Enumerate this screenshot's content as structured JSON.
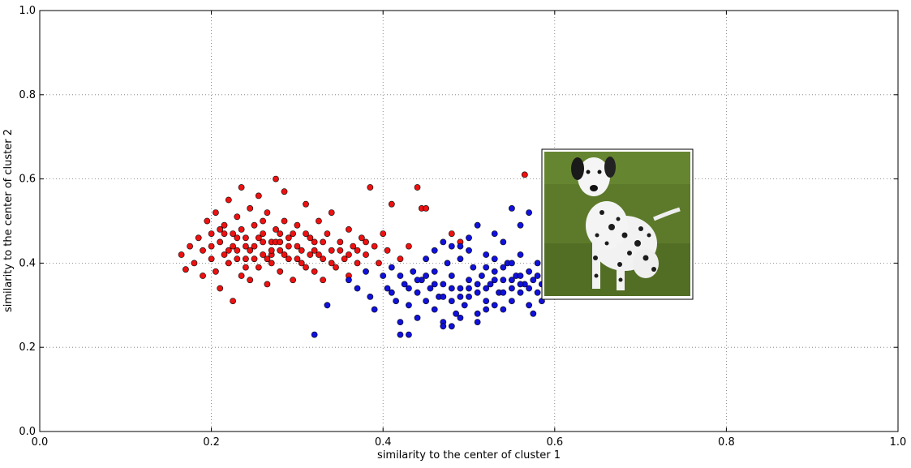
{
  "chart_data": {
    "type": "scatter",
    "xlabel": "similarity to the center of cluster 1",
    "ylabel": "similarity to the center of cluster 2",
    "xlim": [
      0.0,
      1.0
    ],
    "ylim": [
      0.0,
      1.0
    ],
    "x_ticks": [
      "0.0",
      "0.2",
      "0.4",
      "0.6",
      "0.8",
      "1.0"
    ],
    "y_ticks": [
      "0.0",
      "0.2",
      "0.4",
      "0.6",
      "0.8",
      "1.0"
    ],
    "grid": true,
    "series": [
      {
        "color": "#ee1111",
        "points": [
          [
            0.165,
            0.42
          ],
          [
            0.17,
            0.385
          ],
          [
            0.175,
            0.44
          ],
          [
            0.18,
            0.4
          ],
          [
            0.185,
            0.46
          ],
          [
            0.19,
            0.43
          ],
          [
            0.19,
            0.37
          ],
          [
            0.195,
            0.5
          ],
          [
            0.2,
            0.47
          ],
          [
            0.2,
            0.41
          ],
          [
            0.205,
            0.38
          ],
          [
            0.205,
            0.52
          ],
          [
            0.21,
            0.45
          ],
          [
            0.21,
            0.34
          ],
          [
            0.215,
            0.49
          ],
          [
            0.215,
            0.42
          ],
          [
            0.22,
            0.55
          ],
          [
            0.22,
            0.4
          ],
          [
            0.225,
            0.47
          ],
          [
            0.225,
            0.31
          ],
          [
            0.23,
            0.43
          ],
          [
            0.23,
            0.51
          ],
          [
            0.235,
            0.37
          ],
          [
            0.235,
            0.58
          ],
          [
            0.24,
            0.46
          ],
          [
            0.24,
            0.41
          ],
          [
            0.245,
            0.53
          ],
          [
            0.245,
            0.36
          ],
          [
            0.25,
            0.44
          ],
          [
            0.25,
            0.49
          ],
          [
            0.255,
            0.39
          ],
          [
            0.255,
            0.56
          ],
          [
            0.26,
            0.42
          ],
          [
            0.26,
            0.47
          ],
          [
            0.265,
            0.35
          ],
          [
            0.265,
            0.52
          ],
          [
            0.27,
            0.45
          ],
          [
            0.27,
            0.4
          ],
          [
            0.275,
            0.6
          ],
          [
            0.275,
            0.48
          ],
          [
            0.28,
            0.43
          ],
          [
            0.28,
            0.38
          ],
          [
            0.285,
            0.5
          ],
          [
            0.285,
            0.57
          ],
          [
            0.29,
            0.41
          ],
          [
            0.29,
            0.46
          ],
          [
            0.295,
            0.36
          ],
          [
            0.3,
            0.44
          ],
          [
            0.3,
            0.49
          ],
          [
            0.305,
            0.4
          ],
          [
            0.31,
            0.47
          ],
          [
            0.31,
            0.54
          ],
          [
            0.315,
            0.42
          ],
          [
            0.32,
            0.38
          ],
          [
            0.32,
            0.45
          ],
          [
            0.325,
            0.5
          ],
          [
            0.33,
            0.41
          ],
          [
            0.33,
            0.36
          ],
          [
            0.335,
            0.47
          ],
          [
            0.34,
            0.43
          ],
          [
            0.34,
            0.52
          ],
          [
            0.345,
            0.39
          ],
          [
            0.35,
            0.45
          ],
          [
            0.355,
            0.41
          ],
          [
            0.36,
            0.48
          ],
          [
            0.36,
            0.37
          ],
          [
            0.365,
            0.44
          ],
          [
            0.37,
            0.4
          ],
          [
            0.375,
            0.46
          ],
          [
            0.38,
            0.42
          ],
          [
            0.385,
            0.58
          ],
          [
            0.39,
            0.44
          ],
          [
            0.395,
            0.4
          ],
          [
            0.4,
            0.47
          ],
          [
            0.405,
            0.43
          ],
          [
            0.41,
            0.54
          ],
          [
            0.42,
            0.41
          ],
          [
            0.43,
            0.44
          ],
          [
            0.44,
            0.58
          ],
          [
            0.445,
            0.53
          ],
          [
            0.45,
            0.53
          ],
          [
            0.48,
            0.47
          ],
          [
            0.49,
            0.45
          ],
          [
            0.565,
            0.61
          ],
          [
            0.215,
            0.47
          ],
          [
            0.225,
            0.44
          ],
          [
            0.235,
            0.48
          ],
          [
            0.245,
            0.43
          ],
          [
            0.255,
            0.46
          ],
          [
            0.265,
            0.41
          ],
          [
            0.275,
            0.45
          ],
          [
            0.285,
            0.42
          ],
          [
            0.295,
            0.47
          ],
          [
            0.305,
            0.43
          ],
          [
            0.315,
            0.46
          ],
          [
            0.325,
            0.42
          ],
          [
            0.2,
            0.44
          ],
          [
            0.21,
            0.48
          ],
          [
            0.23,
            0.46
          ],
          [
            0.24,
            0.39
          ],
          [
            0.26,
            0.5
          ],
          [
            0.27,
            0.42
          ],
          [
            0.28,
            0.47
          ],
          [
            0.3,
            0.41
          ],
          [
            0.24,
            0.44
          ],
          [
            0.25,
            0.41
          ],
          [
            0.26,
            0.45
          ],
          [
            0.27,
            0.43
          ],
          [
            0.28,
            0.45
          ],
          [
            0.29,
            0.44
          ],
          [
            0.22,
            0.43
          ],
          [
            0.23,
            0.41
          ],
          [
            0.31,
            0.39
          ],
          [
            0.32,
            0.43
          ],
          [
            0.33,
            0.45
          ],
          [
            0.34,
            0.4
          ],
          [
            0.35,
            0.43
          ],
          [
            0.36,
            0.42
          ],
          [
            0.37,
            0.43
          ],
          [
            0.38,
            0.45
          ]
        ]
      },
      {
        "color": "#1111dd",
        "points": [
          [
            0.32,
            0.23
          ],
          [
            0.335,
            0.3
          ],
          [
            0.36,
            0.36
          ],
          [
            0.37,
            0.34
          ],
          [
            0.38,
            0.38
          ],
          [
            0.385,
            0.32
          ],
          [
            0.39,
            0.29
          ],
          [
            0.4,
            0.37
          ],
          [
            0.405,
            0.34
          ],
          [
            0.41,
            0.39
          ],
          [
            0.415,
            0.31
          ],
          [
            0.42,
            0.26
          ],
          [
            0.425,
            0.35
          ],
          [
            0.43,
            0.3
          ],
          [
            0.435,
            0.38
          ],
          [
            0.44,
            0.33
          ],
          [
            0.44,
            0.27
          ],
          [
            0.445,
            0.36
          ],
          [
            0.45,
            0.31
          ],
          [
            0.45,
            0.41
          ],
          [
            0.455,
            0.34
          ],
          [
            0.46,
            0.29
          ],
          [
            0.46,
            0.38
          ],
          [
            0.465,
            0.32
          ],
          [
            0.47,
            0.26
          ],
          [
            0.47,
            0.35
          ],
          [
            0.475,
            0.4
          ],
          [
            0.48,
            0.31
          ],
          [
            0.48,
            0.37
          ],
          [
            0.485,
            0.28
          ],
          [
            0.49,
            0.34
          ],
          [
            0.49,
            0.44
          ],
          [
            0.495,
            0.3
          ],
          [
            0.5,
            0.36
          ],
          [
            0.5,
            0.32
          ],
          [
            0.505,
            0.39
          ],
          [
            0.51,
            0.33
          ],
          [
            0.51,
            0.28
          ],
          [
            0.515,
            0.37
          ],
          [
            0.52,
            0.31
          ],
          [
            0.52,
            0.42
          ],
          [
            0.525,
            0.35
          ],
          [
            0.53,
            0.3
          ],
          [
            0.53,
            0.38
          ],
          [
            0.535,
            0.33
          ],
          [
            0.54,
            0.36
          ],
          [
            0.54,
            0.29
          ],
          [
            0.545,
            0.4
          ],
          [
            0.55,
            0.34
          ],
          [
            0.55,
            0.31
          ],
          [
            0.555,
            0.37
          ],
          [
            0.56,
            0.33
          ],
          [
            0.56,
            0.42
          ],
          [
            0.565,
            0.35
          ],
          [
            0.57,
            0.3
          ],
          [
            0.57,
            0.38
          ],
          [
            0.575,
            0.36
          ],
          [
            0.58,
            0.33
          ],
          [
            0.58,
            0.4
          ],
          [
            0.585,
            0.35
          ],
          [
            0.55,
            0.53
          ],
          [
            0.57,
            0.52
          ],
          [
            0.56,
            0.49
          ],
          [
            0.42,
            0.23
          ],
          [
            0.43,
            0.23
          ],
          [
            0.47,
            0.25
          ],
          [
            0.48,
            0.25
          ],
          [
            0.49,
            0.27
          ],
          [
            0.51,
            0.26
          ],
          [
            0.52,
            0.29
          ],
          [
            0.5,
            0.46
          ],
          [
            0.51,
            0.49
          ],
          [
            0.53,
            0.47
          ],
          [
            0.54,
            0.45
          ],
          [
            0.46,
            0.43
          ],
          [
            0.47,
            0.45
          ],
          [
            0.48,
            0.44
          ],
          [
            0.49,
            0.41
          ],
          [
            0.5,
            0.43
          ],
          [
            0.52,
            0.39
          ],
          [
            0.53,
            0.41
          ],
          [
            0.54,
            0.39
          ],
          [
            0.55,
            0.4
          ],
          [
            0.56,
            0.37
          ],
          [
            0.57,
            0.34
          ],
          [
            0.58,
            0.37
          ],
          [
            0.585,
            0.31
          ],
          [
            0.575,
            0.28
          ],
          [
            0.49,
            0.32
          ],
          [
            0.5,
            0.34
          ],
          [
            0.51,
            0.35
          ],
          [
            0.52,
            0.34
          ],
          [
            0.53,
            0.36
          ],
          [
            0.54,
            0.33
          ],
          [
            0.55,
            0.36
          ],
          [
            0.56,
            0.35
          ],
          [
            0.48,
            0.34
          ],
          [
            0.47,
            0.32
          ],
          [
            0.46,
            0.35
          ],
          [
            0.45,
            0.37
          ],
          [
            0.44,
            0.36
          ],
          [
            0.43,
            0.34
          ],
          [
            0.42,
            0.37
          ],
          [
            0.41,
            0.33
          ]
        ]
      }
    ]
  },
  "inset_image": {
    "subject": "dalmatian-dog-photo",
    "grass_color": "#5c7a2a",
    "frame_color": "#000000"
  }
}
